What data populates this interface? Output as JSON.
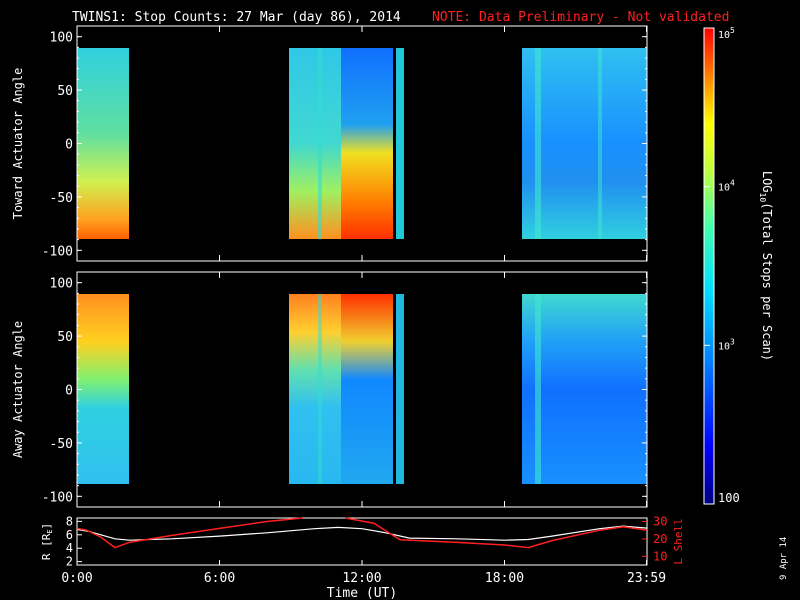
{
  "header": {
    "title": "TWINS1: Stop Counts: 27 Mar (day  86), 2014",
    "note": "NOTE: Data Preliminary - Not validated",
    "note_color": "#ff2020"
  },
  "side_date": "9 Apr 14",
  "colorbar": {
    "label_log": "LOG",
    "label_sub": "10",
    "label_rest": "(Total Stops per Scan)",
    "ticks": [
      {
        "label": "100"
      },
      {
        "label": "10",
        "sup": "3"
      },
      {
        "label": "10",
        "sup": "4"
      },
      {
        "label": "10",
        "sup": "5"
      }
    ],
    "range_log10": [
      2,
      5
    ],
    "tick_values_log10": [
      2,
      3,
      4,
      5
    ]
  },
  "chart_data": [
    {
      "type": "heatmap",
      "panel": "toward",
      "ylabel": "Toward Actuator Angle",
      "ylim": [
        -110,
        110
      ],
      "yticks": [
        "100",
        "50",
        "0",
        "-50",
        "-100"
      ],
      "ytick_values": [
        100,
        50,
        0,
        -50,
        -100
      ],
      "data_y_range": [
        -90,
        90
      ],
      "x_range_hours": [
        0,
        24
      ],
      "coverage_hours": [
        [
          0,
          1.6
        ],
        [
          8.7,
          12.6
        ],
        [
          12.7,
          13.0
        ],
        [
          13.05,
          13.35
        ],
        [
          18.8,
          24
        ]
      ],
      "color_scale": "log10 total stops per scan"
    },
    {
      "type": "heatmap",
      "panel": "away",
      "ylabel": "Away Actuator Angle",
      "ylim": [
        -110,
        110
      ],
      "yticks": [
        "100",
        "50",
        "0",
        "-50",
        "-100"
      ],
      "ytick_values": [
        100,
        50,
        0,
        -50,
        -100
      ],
      "data_y_range": [
        -90,
        90
      ],
      "x_range_hours": [
        0,
        24
      ],
      "coverage_hours": [
        [
          0,
          1.6
        ],
        [
          8.7,
          12.6
        ],
        [
          12.7,
          13.0
        ],
        [
          13.05,
          13.35
        ],
        [
          18.8,
          24
        ]
      ],
      "color_scale": "log10 total stops per scan"
    },
    {
      "type": "line",
      "panel": "orbit",
      "xlabel": "Time (UT)",
      "xticks": [
        "0:00",
        "6:00",
        "12:00",
        "18:00",
        "23:59"
      ],
      "xtick_hours": [
        0,
        6,
        12,
        18,
        23.98
      ],
      "ylabel_left": "R [R",
      "ylabel_left_sub": "E",
      "ylabel_left_end": "]",
      "yticks_left": [
        "2",
        "4",
        "6",
        "8"
      ],
      "ylim_left": [
        1.5,
        8.5
      ],
      "ylabel_right": "L Shell",
      "yticks_right": [
        "10",
        "20",
        "30"
      ],
      "ylim_right": [
        5,
        32
      ],
      "series": [
        {
          "name": "R [RE]",
          "axis": "left",
          "color": "#ffffff",
          "x": [
            0,
            0.5,
            1,
            1.6,
            2.2,
            4,
            6,
            8,
            10,
            11,
            12,
            13,
            14,
            16,
            18,
            19,
            20,
            22,
            23,
            24
          ],
          "y": [
            6.8,
            6.5,
            6.0,
            5.4,
            5.2,
            5.4,
            5.8,
            6.3,
            6.9,
            7.1,
            6.9,
            6.3,
            5.5,
            5.4,
            5.2,
            5.3,
            5.8,
            6.9,
            7.3,
            7.0
          ]
        },
        {
          "name": "L Shell",
          "axis": "right",
          "color": "#ff2020",
          "x": [
            0,
            0.4,
            1.0,
            1.6,
            2.2,
            4,
            6,
            8,
            9.5
          ],
          "y": [
            26,
            25,
            21,
            15,
            18,
            22,
            26,
            30,
            33
          ],
          "x2": [
            11.3,
            12.5,
            13.6,
            16,
            18,
            19,
            20,
            22,
            23,
            24
          ],
          "y2": [
            33,
            29,
            19.5,
            18,
            16.5,
            15,
            19,
            25,
            27,
            25
          ]
        }
      ]
    }
  ],
  "colors": {
    "background": "#000000",
    "axes": "#ffffff",
    "r_line": "#ffffff",
    "l_line": "#ff2020"
  }
}
